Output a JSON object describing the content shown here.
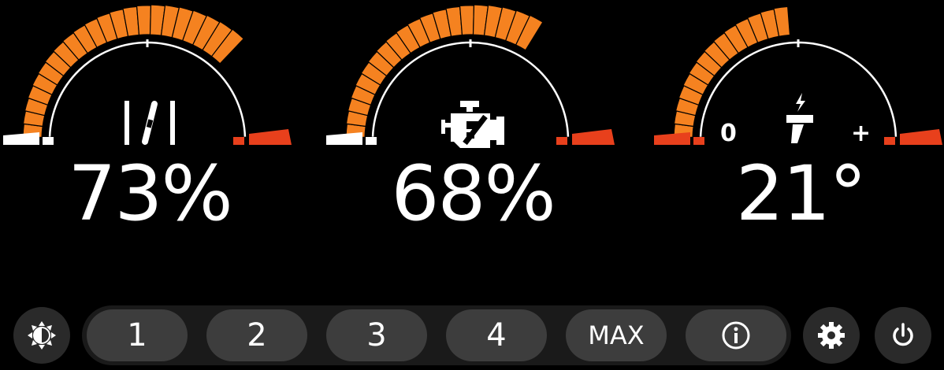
{
  "gauges": [
    {
      "name": "fan-speed",
      "icon": "fan-icon",
      "value_label": "73%",
      "level_percent": 73,
      "scale_min_label": "",
      "scale_max_label": ""
    },
    {
      "name": "engine-load",
      "icon": "engine-icon",
      "value_label": "68%",
      "level_percent": 68,
      "scale_min_label": "",
      "scale_max_label": ""
    },
    {
      "name": "temperature",
      "icon": "heater-icon",
      "value_label": "21°",
      "level_percent": 47,
      "scale_min_label": "0",
      "scale_max_label": "+"
    }
  ],
  "toolbar": {
    "brightness_icon": "brightness-icon",
    "modes": [
      "1",
      "2",
      "3",
      "4",
      "MAX"
    ],
    "info_icon": "info-icon",
    "settings_icon": "gear-icon",
    "power_icon": "power-icon"
  },
  "colors": {
    "fill": "#f58220",
    "danger": "#e8401c",
    "track": "#ffffff",
    "button": "#3d3d3d",
    "bar": "#1a1a1a",
    "background": "#000000"
  }
}
